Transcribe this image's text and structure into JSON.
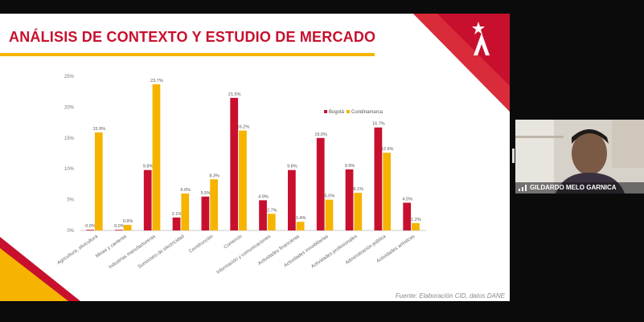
{
  "slide": {
    "title": "ANÁLISIS DE CONTEXTO Y ESTUDIO DE MERCADO",
    "source": "Fuente: Elaboración CID, datos DANE"
  },
  "participant": {
    "name": "GILDARDO MELO GARNICA"
  },
  "colors": {
    "red": "#c8102e",
    "yellow": "#f6b400"
  },
  "chart_data": {
    "type": "bar",
    "categories": [
      "Agricultura, silvicultura",
      "Minas y canteras",
      "Industrias manufactureras",
      "Suministro de electricidad",
      "Construcción",
      "Comercio",
      "Información y comunicaciones",
      "Actividades financieras",
      "Actividades inmobiliarias",
      "Actividades profesionales",
      "Administración pública",
      "Actividades artísticas"
    ],
    "series": [
      {
        "name": "Bogotá",
        "values": [
          0.0,
          0.0,
          9.8,
          2.1,
          5.5,
          21.5,
          4.9,
          9.8,
          15.0,
          9.9,
          16.7,
          4.5
        ],
        "labels": [
          "0.0%",
          "0.0%",
          "9.8%",
          "2.1%",
          "5.5%",
          "21.5%",
          "4.9%",
          "9.8%",
          "15.0%",
          "9.9%",
          "16.7%",
          "4.5%"
        ]
      },
      {
        "name": "Cundinamarca",
        "values": [
          15.9,
          0.9,
          23.7,
          6.0,
          8.3,
          16.2,
          2.7,
          1.4,
          5.0,
          6.1,
          12.6,
          1.2
        ],
        "labels": [
          "15.9%",
          "0.9%",
          "23.7%",
          "6.0%",
          "8.3%",
          "16.2%",
          "2.7%",
          "1.4%",
          "5.0%",
          "6.1%",
          "12.6%",
          "1.2%"
        ]
      }
    ],
    "yticks": [
      "0%",
      "5%",
      "10%",
      "15%",
      "20%",
      "25%"
    ],
    "ylim": [
      0,
      25
    ],
    "legend": "top-right"
  }
}
